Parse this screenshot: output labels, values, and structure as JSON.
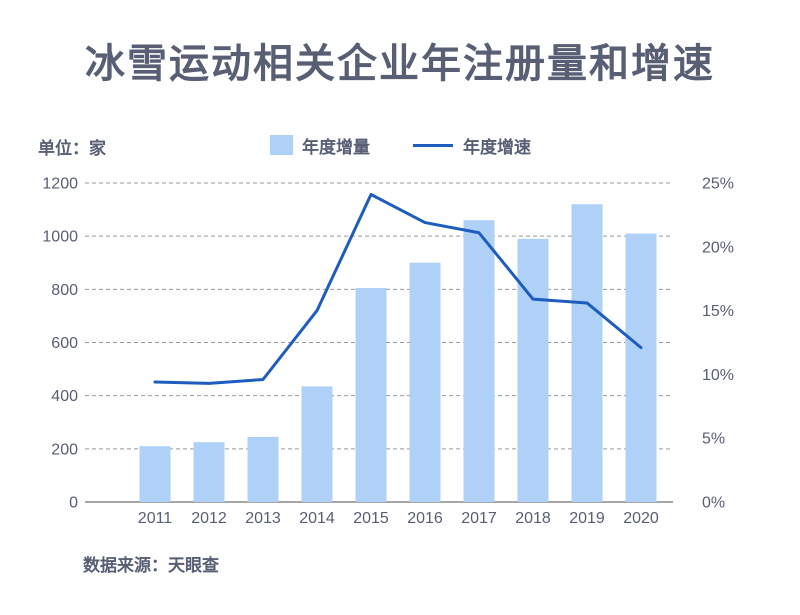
{
  "page": {
    "title": "冰雪运动相关企业年注册量和增速",
    "unit_label": "单位：家",
    "source": "数据来源：天眼查"
  },
  "legend": {
    "bar_label": "年度增量",
    "line_label": "年度增速"
  },
  "colors": {
    "bar": "#AFD1F8",
    "line": "#1E5CBE",
    "text": "#585E74",
    "grid": "#999999",
    "axis": "#888888"
  },
  "chart_data": {
    "type": "bar+line combo",
    "title": "冰雪运动相关企业年注册量和增速",
    "categories": [
      "2011",
      "2012",
      "2013",
      "2014",
      "2015",
      "2016",
      "2017",
      "2018",
      "2019",
      "2020"
    ],
    "series": [
      {
        "name": "年度增量",
        "type": "bar",
        "axis": "left",
        "unit": "家",
        "values": [
          210,
          225,
          245,
          435,
          805,
          900,
          1060,
          990,
          1120,
          1010
        ]
      },
      {
        "name": "年度增速",
        "type": "line",
        "axis": "right",
        "unit": "%",
        "values": [
          9.4,
          9.3,
          9.6,
          15.0,
          24.1,
          21.9,
          21.1,
          15.9,
          15.6,
          12.1
        ]
      }
    ],
    "left_axis": {
      "ticks": [
        1200,
        1000,
        800,
        600,
        400,
        200,
        0
      ],
      "range": [
        0,
        1200
      ]
    },
    "right_axis": {
      "tick_labels": [
        "25%",
        "20%",
        "15%",
        "10%",
        "5%",
        "0%"
      ],
      "tick_values": [
        25,
        20,
        15,
        10,
        5,
        0
      ],
      "range": [
        0,
        25
      ]
    },
    "grid": "dashed horizontal, solid baseline",
    "legend_position": "top-center"
  }
}
